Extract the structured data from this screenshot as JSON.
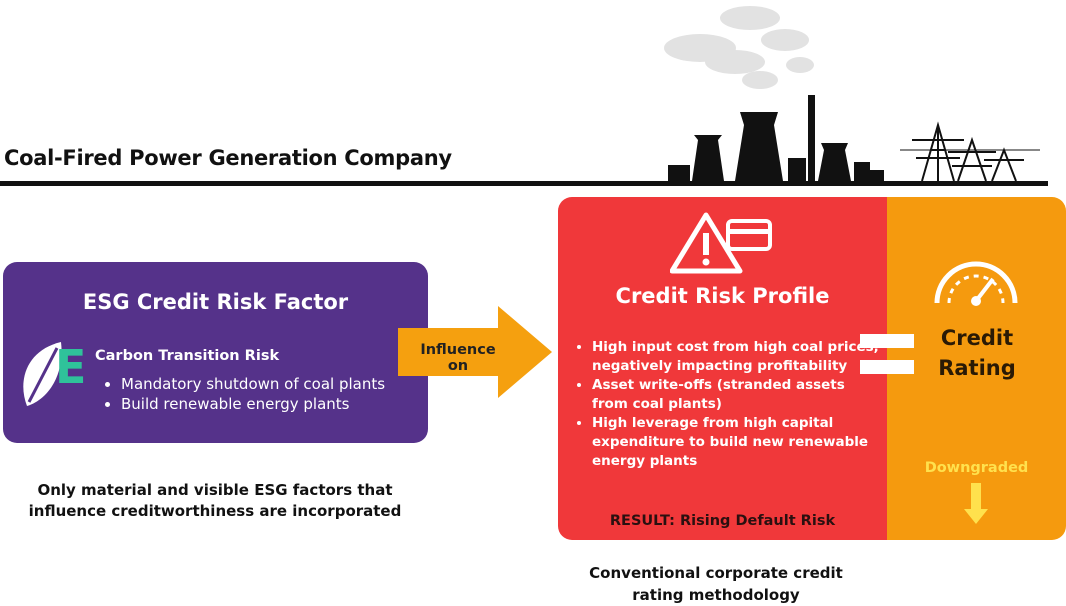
{
  "header": {
    "title": "Coal-Fired Power Generation Company"
  },
  "esg_box": {
    "title": "ESG Credit Risk Factor",
    "icon_letter": "E",
    "subtitle": "Carbon Transition Risk",
    "bullets": [
      "Mandatory shutdown of coal plants",
      "Build renewable energy plants"
    ]
  },
  "arrow": {
    "label": "Influence on"
  },
  "note": "Only material and visible ESG factors that influence creditworthiness are incorporated",
  "risk_box": {
    "title": "Credit Risk Profile",
    "bullets": [
      "High input cost from high coal prices, negatively impacting profitability",
      "Asset write-offs (stranded assets from coal plants)",
      "High leverage from high capital expenditure to build new renewable energy plants"
    ],
    "result": "RESULT: Rising Default Risk"
  },
  "rating_box": {
    "title": "Credit Rating",
    "status": "Downgraded"
  },
  "caption": "Conventional corporate credit rating methodology"
}
